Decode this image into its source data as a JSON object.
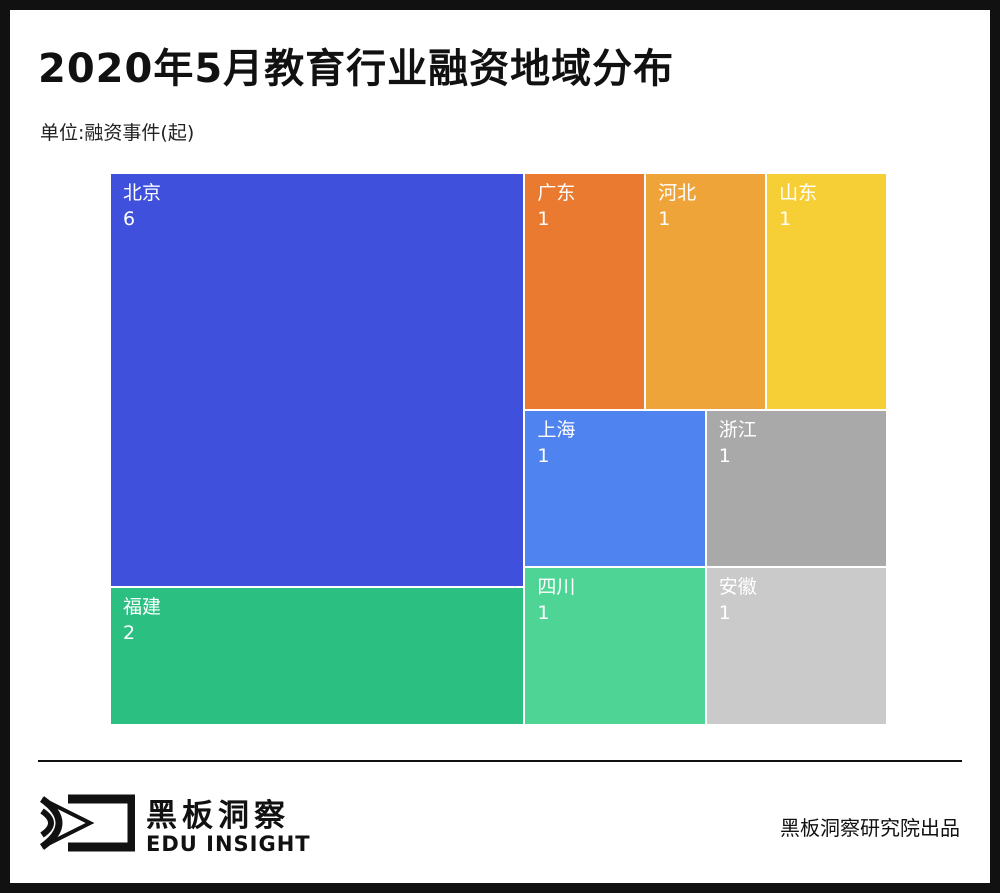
{
  "title": "2020年5月教育行业融资地域分布",
  "unit_label": "单位:融资事件(起)",
  "chart_data": {
    "type": "treemap",
    "unit": "融资事件(起)",
    "items": [
      {
        "name": "北京",
        "value": 6,
        "color": "#3f51dc"
      },
      {
        "name": "福建",
        "value": 2,
        "color": "#2bbf82"
      },
      {
        "name": "广东",
        "value": 1,
        "color": "#ea7a30"
      },
      {
        "name": "河北",
        "value": 1,
        "color": "#efa43a"
      },
      {
        "name": "山东",
        "value": 1,
        "color": "#f6cf36"
      },
      {
        "name": "上海",
        "value": 1,
        "color": "#4f83ef"
      },
      {
        "name": "浙江",
        "value": 1,
        "color": "#a9a9a9"
      },
      {
        "name": "四川",
        "value": 1,
        "color": "#4ed596"
      },
      {
        "name": "安徽",
        "value": 1,
        "color": "#cacaca"
      }
    ]
  },
  "footer": {
    "brand_cn": "黑板洞察",
    "brand_en": "EDU INSIGHT",
    "credit": "黑板洞察研究院出品",
    "logo_icon": "eye-frame-logo"
  }
}
